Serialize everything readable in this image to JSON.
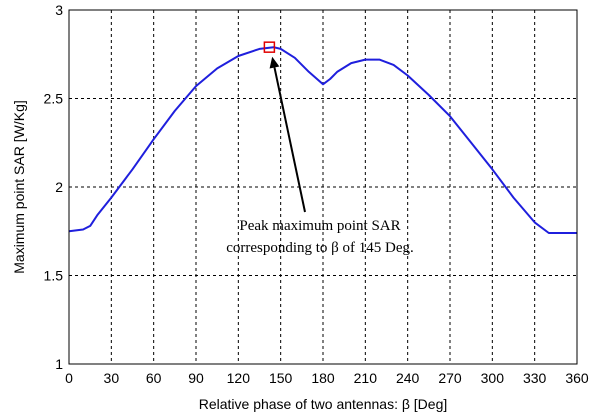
{
  "chart_data": {
    "type": "line",
    "title": "",
    "xlabel": "Relative phase of two antennas: β [Deg]",
    "ylabel": "Maximum point SAR [W/Kg]",
    "xlim": [
      0,
      360
    ],
    "ylim": [
      1,
      3
    ],
    "xticks": [
      "0",
      "30",
      "60",
      "90",
      "120",
      "150",
      "180",
      "210",
      "240",
      "270",
      "300",
      "330",
      "360"
    ],
    "yticks": [
      "1",
      "1.5",
      "2",
      "2.5",
      "3"
    ],
    "grid": true,
    "series": [
      {
        "color": "#1f1fdd",
        "x": [
          0,
          10,
          15,
          20,
          30,
          45,
          60,
          75,
          90,
          105,
          120,
          135,
          145,
          150,
          160,
          170,
          180,
          185,
          190,
          200,
          210,
          220,
          230,
          240,
          255,
          270,
          285,
          300,
          315,
          330,
          340,
          350,
          360
        ],
        "y": [
          1.75,
          1.76,
          1.78,
          1.84,
          1.94,
          2.1,
          2.27,
          2.43,
          2.57,
          2.67,
          2.74,
          2.78,
          2.79,
          2.78,
          2.73,
          2.65,
          2.58,
          2.61,
          2.65,
          2.7,
          2.72,
          2.72,
          2.69,
          2.63,
          2.52,
          2.4,
          2.25,
          2.1,
          1.94,
          1.8,
          1.74,
          1.74,
          1.74
        ]
      }
    ],
    "marker": {
      "x": 142,
      "y": 2.79,
      "color": "#e00000"
    },
    "annotation": {
      "lines": [
        "Peak maximum point SAR",
        "corresponding to β of 145 Deg."
      ],
      "arrow_to": {
        "x": 144,
        "y": 2.77
      }
    }
  }
}
